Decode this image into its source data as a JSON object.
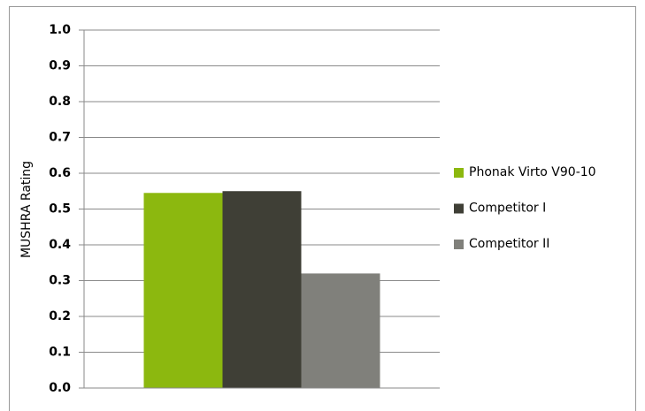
{
  "chart_data": {
    "type": "bar",
    "y_label": "MUSHRA Rating",
    "categories": [
      null
    ],
    "series": [
      {
        "name": "Phonak Virto V90-10",
        "color": "#8cb80f",
        "values": [
          0.545
        ]
      },
      {
        "name": "Competitor I",
        "color": "#3f3f36",
        "values": [
          0.55
        ]
      },
      {
        "name": "Competitor II",
        "color": "#80807b",
        "values": [
          0.32
        ]
      }
    ],
    "ylim": [
      0,
      1
    ],
    "yticks": [
      {
        "value": 0,
        "label": "0.0"
      },
      0.1,
      0.2,
      0.3,
      0.4,
      0.5,
      0.6,
      0.7,
      0.8,
      0.9,
      {
        "value": 1,
        "label": "1.0"
      }
    ],
    "grid": true,
    "legend": "right"
  }
}
